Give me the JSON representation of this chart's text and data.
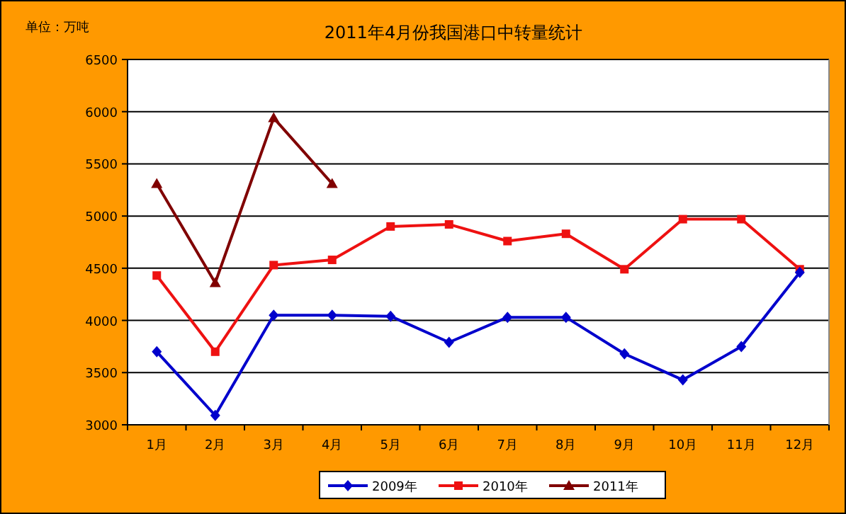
{
  "chart_data": {
    "type": "line",
    "title": "2011年4月份我国港口中转量统计",
    "annotations": [
      "单位：万吨"
    ],
    "categories": [
      "1月",
      "2月",
      "3月",
      "4月",
      "5月",
      "6月",
      "7月",
      "8月",
      "9月",
      "10月",
      "11月",
      "12月"
    ],
    "series": [
      {
        "name": "2009年",
        "color": "#0000cc",
        "marker": "diamond",
        "values": [
          3700,
          3090,
          4050,
          4050,
          4040,
          3790,
          4030,
          4030,
          3680,
          3430,
          3750,
          4460
        ]
      },
      {
        "name": "2010年",
        "color": "#ee1111",
        "marker": "square",
        "values": [
          4430,
          3700,
          4530,
          4580,
          4900,
          4920,
          4760,
          4830,
          4490,
          4970,
          4970,
          4490
        ]
      },
      {
        "name": "2011年",
        "color": "#800000",
        "marker": "triangle",
        "values": [
          5310,
          4360,
          5940,
          5310,
          null,
          null,
          null,
          null,
          null,
          null,
          null,
          null
        ]
      }
    ],
    "ylim": [
      3000,
      6500
    ],
    "yticks": [
      3000,
      3500,
      4000,
      4500,
      5000,
      5500,
      6000,
      6500
    ],
    "grid": "y",
    "legend": "bottom",
    "line_style": "solid"
  }
}
